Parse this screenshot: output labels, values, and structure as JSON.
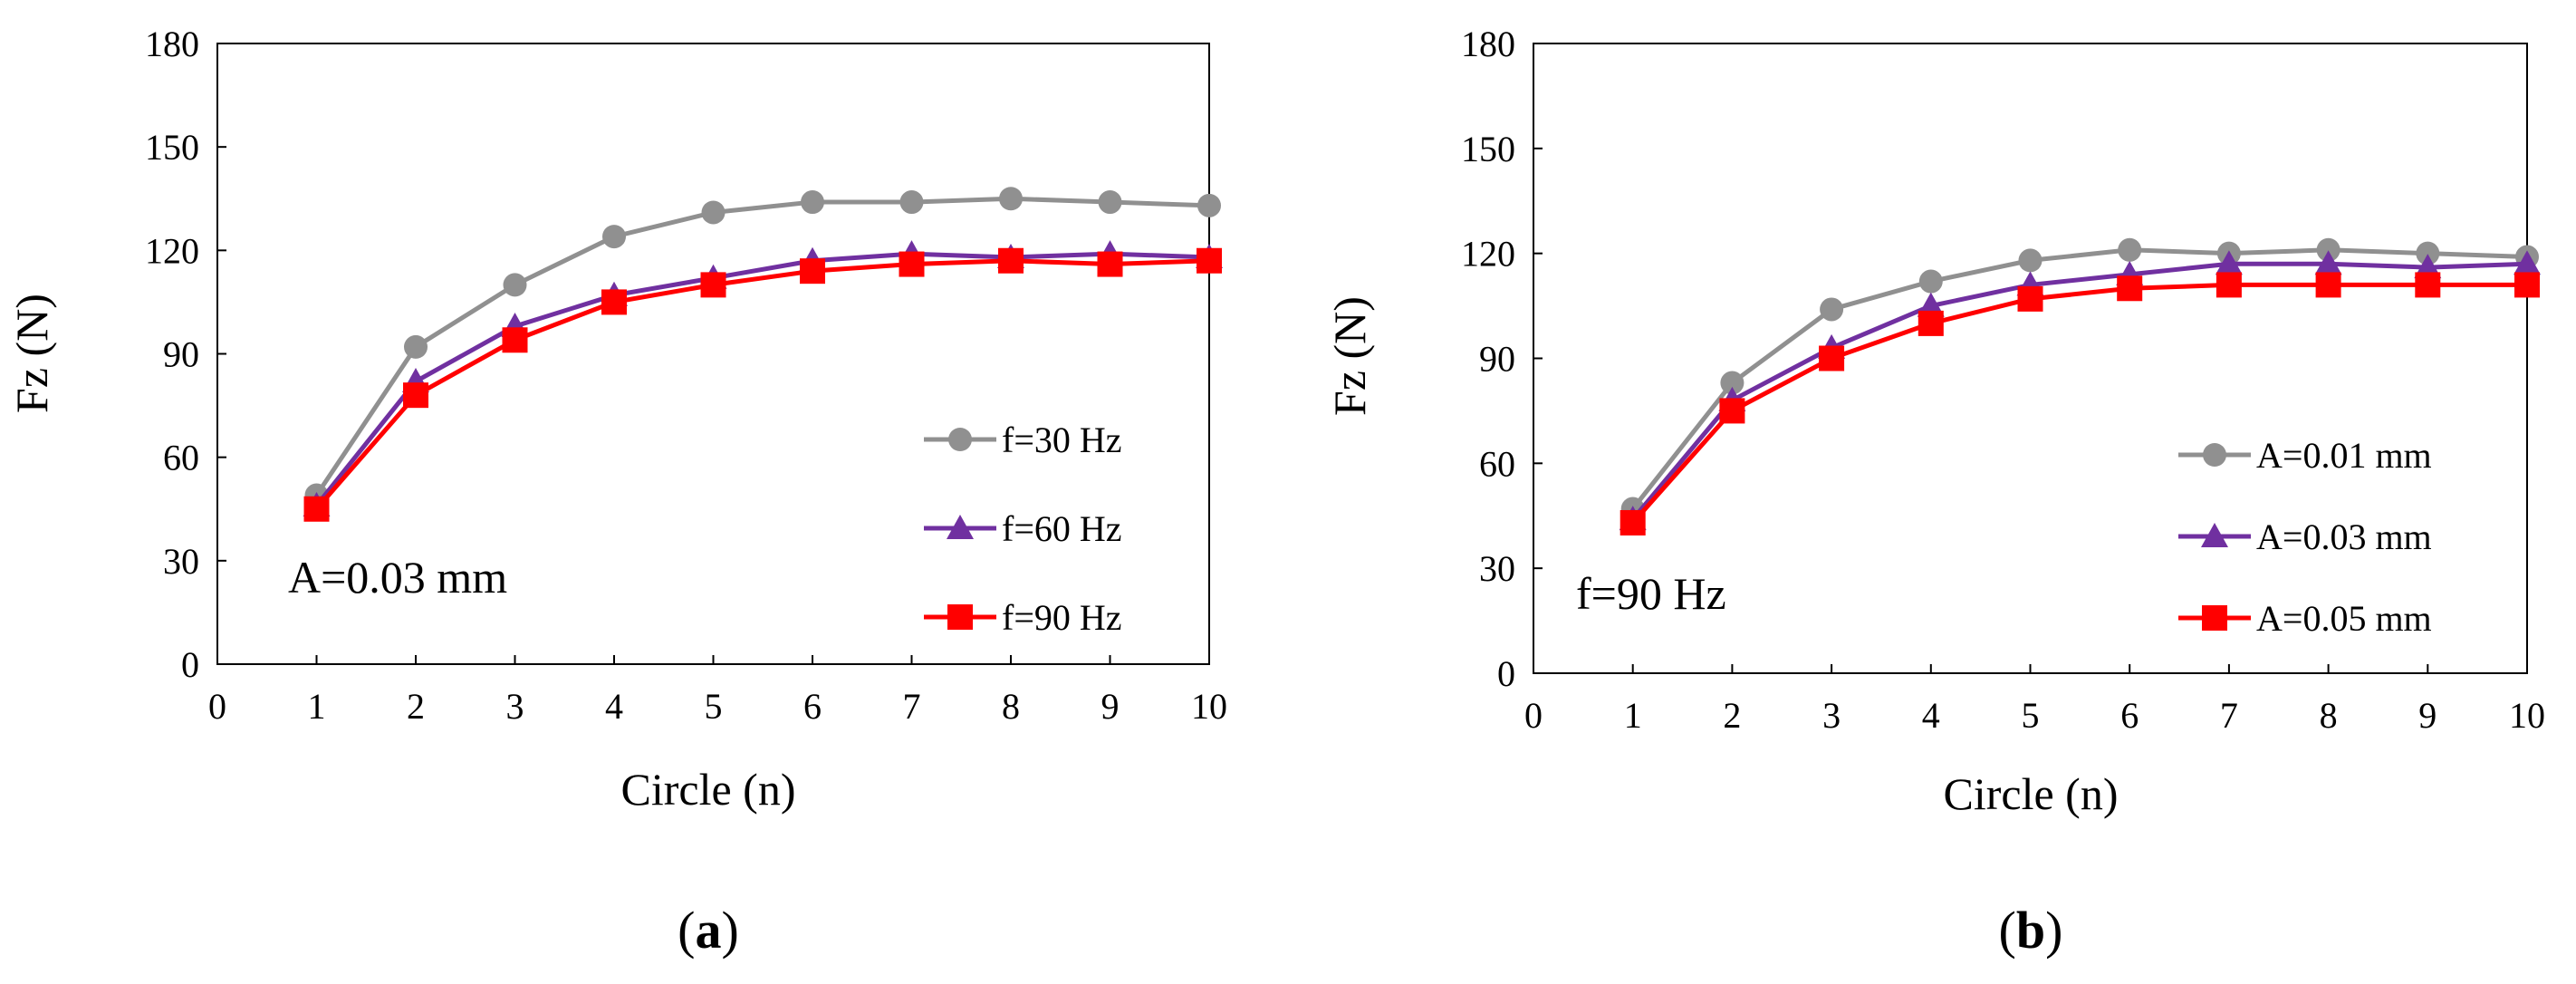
{
  "colors": {
    "gray": "#909090",
    "purple": "#7030A0",
    "red": "#FF0000"
  },
  "chart_data": [
    {
      "type": "line",
      "title": "",
      "xlabel": "Circle (n)",
      "ylabel": "Fz (N)",
      "xlim": [
        0,
        10
      ],
      "ylim": [
        0,
        180
      ],
      "x_ticks": [
        0,
        1,
        2,
        3,
        4,
        5,
        6,
        7,
        8,
        9,
        10
      ],
      "y_ticks": [
        0,
        30,
        60,
        90,
        120,
        150,
        180
      ],
      "grid": false,
      "legend_position": "bottom-right",
      "annotation": "A=0.03 mm",
      "subfigure_label": "a",
      "x": [
        1,
        2,
        3,
        4,
        5,
        6,
        7,
        8,
        9,
        10
      ],
      "series": [
        {
          "name": "f=30 Hz",
          "marker": "circle",
          "color": "#909090",
          "values": [
            49,
            92,
            110,
            124,
            131,
            134,
            134,
            135,
            134,
            133
          ]
        },
        {
          "name": "f=60 Hz",
          "marker": "triangle",
          "color": "#7030A0",
          "values": [
            46,
            82,
            98,
            107,
            112,
            117,
            119,
            118,
            119,
            118
          ]
        },
        {
          "name": "f=90 Hz",
          "marker": "square",
          "color": "#FF0000",
          "values": [
            45,
            78,
            94,
            105,
            110,
            114,
            116,
            117,
            116,
            117
          ]
        }
      ]
    },
    {
      "type": "line",
      "title": "",
      "xlabel": "Circle (n)",
      "ylabel": "Fz (N)",
      "xlim": [
        0,
        10
      ],
      "ylim": [
        0,
        180
      ],
      "x_ticks": [
        0,
        1,
        2,
        3,
        4,
        5,
        6,
        7,
        8,
        9,
        10
      ],
      "y_ticks": [
        0,
        30,
        60,
        90,
        120,
        150,
        180
      ],
      "grid": false,
      "legend_position": "bottom-right",
      "annotation": "f=90 Hz",
      "subfigure_label": "b",
      "x": [
        1,
        2,
        3,
        4,
        5,
        6,
        7,
        8,
        9,
        10
      ],
      "series": [
        {
          "name": "A=0.01 mm",
          "marker": "circle",
          "color": "#909090",
          "values": [
            47,
            83,
            104,
            112,
            118,
            121,
            120,
            121,
            120,
            119
          ]
        },
        {
          "name": "A=0.03 mm",
          "marker": "triangle",
          "color": "#7030A0",
          "values": [
            44,
            78,
            93,
            105,
            111,
            114,
            117,
            117,
            116,
            117
          ]
        },
        {
          "name": "A=0.05 mm",
          "marker": "square",
          "color": "#FF0000",
          "values": [
            43,
            75,
            90,
            100,
            107,
            110,
            111,
            111,
            111,
            111
          ]
        }
      ]
    }
  ]
}
